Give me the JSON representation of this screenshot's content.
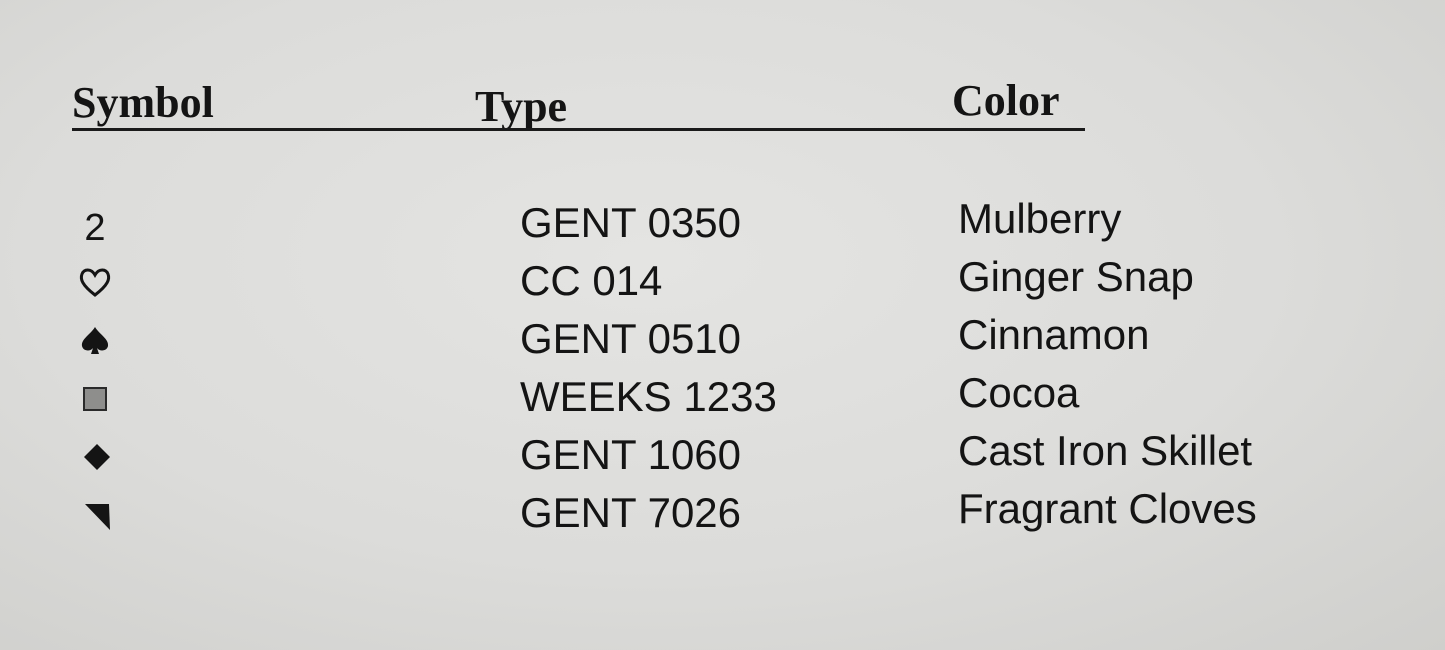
{
  "headers": {
    "symbol": "Symbol",
    "type": "Type",
    "color": "Color"
  },
  "rows": [
    {
      "symbol": "2",
      "symbol_icon": "digit-2",
      "type": "GENT 0350",
      "color": "Mulberry"
    },
    {
      "symbol": "♡",
      "symbol_icon": "heart-outline-icon",
      "type": "CC 014",
      "color": "Ginger Snap"
    },
    {
      "symbol": "♠",
      "symbol_icon": "spade-icon",
      "type": "GENT 0510",
      "color": "Cinnamon"
    },
    {
      "symbol": "",
      "symbol_icon": "gray-square-icon",
      "type": "WEEKS 1233",
      "color": "Cocoa"
    },
    {
      "symbol": "",
      "symbol_icon": "diamond-icon",
      "type": "GENT 1060",
      "color": "Cast Iron Skillet"
    },
    {
      "symbol": "",
      "symbol_icon": "corner-triangle-icon",
      "type": "GENT 7026",
      "color": "Fragrant Cloves"
    }
  ]
}
